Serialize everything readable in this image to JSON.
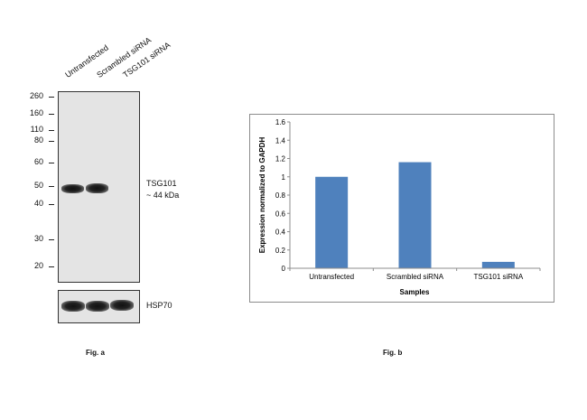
{
  "figure_a": {
    "lanes": [
      "Untransfected",
      "Scrambled siRNA",
      "TSG101 siRNA"
    ],
    "markers": [
      "260",
      "160",
      "110",
      "80",
      "60",
      "50",
      "40",
      "30",
      "20"
    ],
    "target_label": "TSG101",
    "target_size": "~ 44 kDa",
    "loading_control": "HSP70",
    "caption": "Fig. a"
  },
  "figure_b": {
    "caption": "Fig. b"
  },
  "chart_data": {
    "type": "bar",
    "categories": [
      "Untransfected",
      "Scrambled siRNA",
      "TSG101 siRNA"
    ],
    "values": [
      1.0,
      1.16,
      0.07
    ],
    "title": "",
    "xlabel": "Samples",
    "ylabel": "Expression normalized to GAPDH",
    "ylim": [
      0,
      1.6
    ],
    "yticks": [
      0,
      0.2,
      0.4,
      0.6,
      0.8,
      1,
      1.2,
      1.4,
      1.6
    ],
    "bar_color": "#4f81bd",
    "grid": false,
    "legend": "none"
  }
}
